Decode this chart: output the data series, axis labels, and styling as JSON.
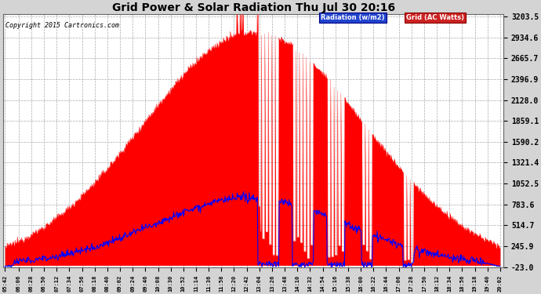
{
  "title": "Grid Power & Solar Radiation Thu Jul 30 20:16",
  "copyright": "Copyright 2015 Cartronics.com",
  "yticks": [
    3203.5,
    2934.6,
    2665.7,
    2396.9,
    2128.0,
    1859.1,
    1590.2,
    1321.4,
    1052.5,
    783.6,
    514.7,
    245.9,
    -23.0
  ],
  "ymin": -23.0,
  "ymax": 3203.5,
  "bg_color": "#d4d4d4",
  "plot_bg_color": "#ffffff",
  "grid_color": "#aaaaaa",
  "radiation_color": "#ff0000",
  "grid_power_color": "#0000ff",
  "legend_radiation_label": "Radiation (w/m2)",
  "legend_grid_label": "Grid (AC Watts)",
  "xtick_fontsize": 5.0,
  "ytick_fontsize": 7.0,
  "title_fontsize": 10,
  "copyright_fontsize": 6.0,
  "xtick_labels": [
    "05:42",
    "06:06",
    "06:28",
    "06:50",
    "07:12",
    "07:34",
    "07:56",
    "08:18",
    "08:40",
    "09:02",
    "09:24",
    "09:46",
    "10:08",
    "10:30",
    "10:52",
    "11:14",
    "11:36",
    "11:58",
    "12:20",
    "12:42",
    "13:04",
    "13:26",
    "13:48",
    "14:10",
    "14:32",
    "14:54",
    "15:16",
    "15:38",
    "16:00",
    "16:22",
    "16:44",
    "17:06",
    "17:28",
    "17:50",
    "18:12",
    "18:34",
    "18:56",
    "19:18",
    "19:40",
    "20:02"
  ]
}
